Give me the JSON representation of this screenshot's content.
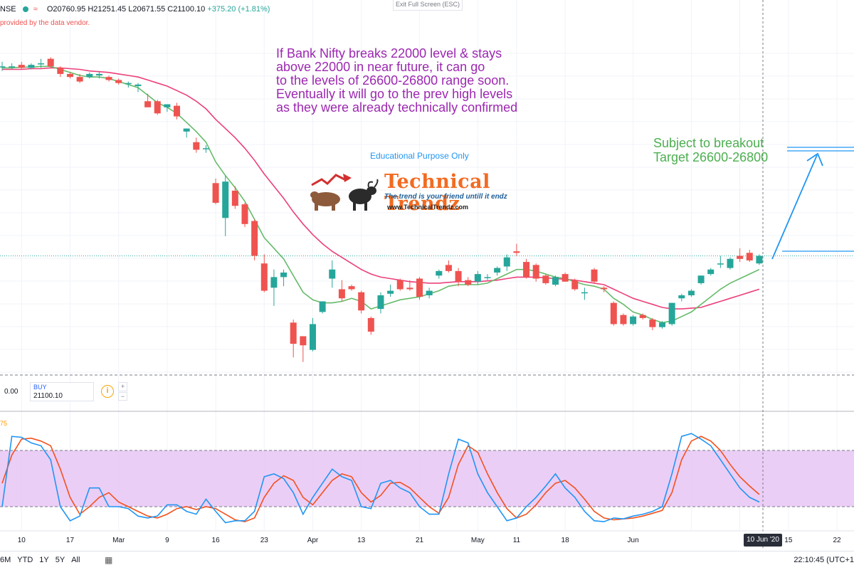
{
  "header": {
    "symbol": "NSE",
    "ohlc": "O20760.95  H21251.45  L20671.55  C21100.10",
    "change": "+375.20 (+1.81%)",
    "vendor_note": "provided by the data vendor.",
    "exit_fullscreen": "Exit Full Screen (ESC)"
  },
  "annotations": {
    "main_text": "If Bank Nifty breaks 22000 level & stays\nabove 22000 in near future, it can go\nto the levels of 26600-26800 range soon.\nEventually it will go to the prev high levels\nas they were already technically confirmed",
    "target_text": "Subject to breakout\nTarget 26600-26800",
    "educational": "Educational Purpose Only",
    "logo_title": "Technical Trendz",
    "logo_tagline": "The trend is your friend untill it endz",
    "logo_url": "www.TechnicalTrendz.com"
  },
  "order_panel": {
    "sell_value": "0.00",
    "buy_label": "BUY",
    "buy_value": "21100.10"
  },
  "oscillator": {
    "label": "75"
  },
  "crosshair_date": "10 Jun '20",
  "bottom_bar": {
    "ranges": [
      "6M",
      "YTD",
      "1Y",
      "5Y",
      "All"
    ],
    "time": "22:10:45 (UTC+1"
  },
  "colors": {
    "up": "#26a69a",
    "down": "#ef5350",
    "fast_ma": "#66bb6a",
    "slow_ma": "#ec407a",
    "stoch_k": "#2196f3",
    "stoch_d": "#f4511e",
    "band": "#e7c6f5",
    "annotation": "#9c27b0",
    "target": "#4caf50",
    "arrow": "#2196f3"
  },
  "chart_data": {
    "type": "candlestick",
    "x_ticks": [
      "10",
      "17",
      "Mar",
      "9",
      "16",
      "23",
      "Apr",
      "13",
      "21",
      "May",
      "11",
      "18",
      "Jun",
      "15",
      "22"
    ],
    "candles": [
      {
        "o": 30.0,
        "h": 30.3,
        "l": 29.7,
        "c": 30.0
      },
      {
        "o": 30.0,
        "h": 30.2,
        "l": 29.8,
        "c": 30.0
      },
      {
        "o": 30.1,
        "h": 30.3,
        "l": 29.8,
        "c": 29.9
      },
      {
        "o": 29.9,
        "h": 30.2,
        "l": 29.8,
        "c": 30.1
      },
      {
        "o": 30.2,
        "h": 30.5,
        "l": 29.9,
        "c": 30.2
      },
      {
        "o": 30.5,
        "h": 30.6,
        "l": 29.9,
        "c": 30.0
      },
      {
        "o": 29.9,
        "h": 30.0,
        "l": 29.3,
        "c": 29.5
      },
      {
        "o": 29.5,
        "h": 29.6,
        "l": 29.2,
        "c": 29.3
      },
      {
        "o": 29.3,
        "h": 29.5,
        "l": 28.9,
        "c": 29.0
      },
      {
        "o": 29.3,
        "h": 29.6,
        "l": 29.2,
        "c": 29.5
      },
      {
        "o": 29.4,
        "h": 29.7,
        "l": 29.2,
        "c": 29.5
      },
      {
        "o": 29.3,
        "h": 29.4,
        "l": 29.0,
        "c": 29.1
      },
      {
        "o": 29.1,
        "h": 29.2,
        "l": 28.8,
        "c": 28.9
      },
      {
        "o": 28.9,
        "h": 29.0,
        "l": 28.6,
        "c": 28.9
      },
      {
        "o": 28.7,
        "h": 28.9,
        "l": 28.3,
        "c": 28.8
      },
      {
        "o": 27.7,
        "h": 28.2,
        "l": 27.5,
        "c": 27.3
      },
      {
        "o": 27.7,
        "h": 27.8,
        "l": 26.8,
        "c": 26.9
      },
      {
        "o": 27.3,
        "h": 27.5,
        "l": 27.0,
        "c": 27.5
      },
      {
        "o": 27.4,
        "h": 27.6,
        "l": 26.5,
        "c": 26.7
      },
      {
        "o": 25.7,
        "h": 25.9,
        "l": 25.3,
        "c": 25.9
      },
      {
        "o": 25.0,
        "h": 25.3,
        "l": 24.3,
        "c": 24.5
      },
      {
        "o": 24.6,
        "h": 24.8,
        "l": 24.3,
        "c": 24.6
      },
      {
        "o": 22.3,
        "h": 22.6,
        "l": 20.9,
        "c": 21.0
      },
      {
        "o": 20.0,
        "h": 22.8,
        "l": 18.8,
        "c": 22.4
      },
      {
        "o": 21.8,
        "h": 22.1,
        "l": 20.6,
        "c": 20.8
      },
      {
        "o": 20.9,
        "h": 21.0,
        "l": 19.4,
        "c": 19.6
      },
      {
        "o": 19.8,
        "h": 19.9,
        "l": 17.2,
        "c": 17.5
      },
      {
        "o": 17.0,
        "h": 17.6,
        "l": 15.1,
        "c": 15.2
      },
      {
        "o": 15.4,
        "h": 16.6,
        "l": 14.2,
        "c": 16.1
      },
      {
        "o": 16.1,
        "h": 16.6,
        "l": 15.5,
        "c": 16.4
      },
      {
        "o": 13.1,
        "h": 13.3,
        "l": 10.8,
        "c": 11.7
      },
      {
        "o": 12.2,
        "h": 12.2,
        "l": 10.5,
        "c": 11.6
      },
      {
        "o": 11.3,
        "h": 13.4,
        "l": 11.2,
        "c": 13.0
      },
      {
        "o": 13.8,
        "h": 14.5,
        "l": 13.7,
        "c": 14.5
      },
      {
        "o": 16.0,
        "h": 17.2,
        "l": 15.4,
        "c": 16.6
      },
      {
        "o": 15.3,
        "h": 15.9,
        "l": 14.5,
        "c": 14.7
      },
      {
        "o": 15.5,
        "h": 15.6,
        "l": 15.2,
        "c": 15.3
      },
      {
        "o": 15.1,
        "h": 15.2,
        "l": 13.7,
        "c": 13.9
      },
      {
        "o": 13.4,
        "h": 13.5,
        "l": 12.3,
        "c": 12.5
      },
      {
        "o": 14.0,
        "h": 15.1,
        "l": 13.7,
        "c": 14.9
      },
      {
        "o": 15.0,
        "h": 15.6,
        "l": 14.8,
        "c": 15.2
      },
      {
        "o": 15.9,
        "h": 16.0,
        "l": 15.2,
        "c": 15.3
      },
      {
        "o": 15.4,
        "h": 15.9,
        "l": 15.2,
        "c": 15.3
      },
      {
        "o": 16.0,
        "h": 16.1,
        "l": 14.6,
        "c": 14.8
      },
      {
        "o": 14.9,
        "h": 15.4,
        "l": 14.7,
        "c": 15.2
      },
      {
        "o": 16.2,
        "h": 16.6,
        "l": 16.0,
        "c": 16.5
      },
      {
        "o": 16.9,
        "h": 17.2,
        "l": 16.4,
        "c": 16.5
      },
      {
        "o": 16.5,
        "h": 16.7,
        "l": 15.5,
        "c": 15.8
      },
      {
        "o": 15.9,
        "h": 16.1,
        "l": 15.5,
        "c": 15.6
      },
      {
        "o": 15.8,
        "h": 16.5,
        "l": 15.6,
        "c": 16.3
      },
      {
        "o": 16.1,
        "h": 16.3,
        "l": 15.9,
        "c": 16.1
      },
      {
        "o": 16.4,
        "h": 16.8,
        "l": 16.2,
        "c": 16.7
      },
      {
        "o": 16.8,
        "h": 17.6,
        "l": 16.5,
        "c": 17.4
      },
      {
        "o": 17.8,
        "h": 18.3,
        "l": 17.5,
        "c": 17.7
      },
      {
        "o": 17.1,
        "h": 17.3,
        "l": 16.0,
        "c": 16.1
      },
      {
        "o": 16.9,
        "h": 17.0,
        "l": 15.8,
        "c": 16.0
      },
      {
        "o": 16.2,
        "h": 16.3,
        "l": 15.6,
        "c": 15.7
      },
      {
        "o": 15.6,
        "h": 16.2,
        "l": 15.5,
        "c": 16.1
      },
      {
        "o": 16.3,
        "h": 16.4,
        "l": 15.8,
        "c": 15.8
      },
      {
        "o": 15.9,
        "h": 16.0,
        "l": 15.2,
        "c": 15.3
      },
      {
        "o": 15.1,
        "h": 15.4,
        "l": 14.6,
        "c": 15.1
      },
      {
        "o": 16.6,
        "h": 16.7,
        "l": 15.7,
        "c": 15.8
      },
      {
        "o": 15.4,
        "h": 15.5,
        "l": 15.1,
        "c": 15.3
      },
      {
        "o": 14.4,
        "h": 14.5,
        "l": 12.9,
        "c": 13.0
      },
      {
        "o": 13.6,
        "h": 13.7,
        "l": 12.9,
        "c": 13.0
      },
      {
        "o": 13.0,
        "h": 13.6,
        "l": 12.9,
        "c": 13.5
      },
      {
        "o": 13.6,
        "h": 13.7,
        "l": 13.3,
        "c": 13.4
      },
      {
        "o": 13.3,
        "h": 13.4,
        "l": 12.6,
        "c": 12.8
      },
      {
        "o": 12.8,
        "h": 13.2,
        "l": 12.7,
        "c": 13.1
      },
      {
        "o": 13.0,
        "h": 14.4,
        "l": 12.9,
        "c": 14.4
      },
      {
        "o": 14.7,
        "h": 15.0,
        "l": 14.5,
        "c": 14.9
      },
      {
        "o": 14.9,
        "h": 15.3,
        "l": 14.8,
        "c": 15.2
      },
      {
        "o": 15.7,
        "h": 16.2,
        "l": 15.6,
        "c": 16.2
      },
      {
        "o": 16.3,
        "h": 16.7,
        "l": 16.2,
        "c": 16.6
      },
      {
        "o": 17.0,
        "h": 17.5,
        "l": 16.7,
        "c": 17.0
      },
      {
        "o": 16.7,
        "h": 17.4,
        "l": 16.6,
        "c": 17.3
      },
      {
        "o": 17.5,
        "h": 18.0,
        "l": 17.1,
        "c": 17.3
      },
      {
        "o": 17.7,
        "h": 17.9,
        "l": 17.1,
        "c": 17.2
      },
      {
        "o": 17.0,
        "h": 17.6,
        "l": 16.9,
        "c": 17.5
      }
    ],
    "fast_ma": [
      29.9,
      29.9,
      29.95,
      29.95,
      30.0,
      30.0,
      29.8,
      29.6,
      29.4,
      29.3,
      29.3,
      29.2,
      29.0,
      28.8,
      28.6,
      28.1,
      27.6,
      27.3,
      26.9,
      26.3,
      25.7,
      25.0,
      23.7,
      22.8,
      22.0,
      21.1,
      19.9,
      18.7,
      18.0,
      17.3,
      16.2,
      15.1,
      14.6,
      14.4,
      14.4,
      14.5,
      14.7,
      14.5,
      14.0,
      14.2,
      14.4,
      14.6,
      14.7,
      14.8,
      15.0,
      15.2,
      15.5,
      15.6,
      15.6,
      15.6,
      15.7,
      16.0,
      16.3,
      16.6,
      16.6,
      16.5,
      16.3,
      16.1,
      16.0,
      15.8,
      15.6,
      15.5,
      15.3,
      14.7,
      14.3,
      13.8,
      13.6,
      13.3,
      13.1,
      13.2,
      13.5,
      13.8,
      14.3,
      14.8,
      15.3,
      15.7,
      16.0,
      16.3,
      16.6
    ],
    "slow_ma": [
      29.8,
      29.8,
      29.8,
      29.85,
      29.85,
      29.9,
      29.9,
      29.85,
      29.8,
      29.7,
      29.65,
      29.6,
      29.5,
      29.4,
      29.3,
      29.1,
      28.9,
      28.7,
      28.4,
      28.1,
      27.7,
      27.2,
      26.5,
      25.9,
      25.3,
      24.6,
      23.8,
      22.9,
      22.1,
      21.3,
      20.4,
      19.6,
      18.9,
      18.3,
      17.8,
      17.4,
      17.0,
      16.6,
      16.3,
      16.1,
      16.0,
      15.9,
      15.8,
      15.75,
      15.7,
      15.7,
      15.75,
      15.8,
      15.8,
      15.8,
      15.85,
      15.9,
      16.0,
      16.1,
      16.1,
      16.1,
      16.05,
      16.0,
      15.95,
      15.9,
      15.8,
      15.7,
      15.6,
      15.3,
      15.0,
      14.7,
      14.5,
      14.3,
      14.1,
      14.0,
      14.0,
      14.05,
      14.1,
      14.3,
      14.5,
      14.7,
      14.9,
      15.1,
      15.3
    ],
    "stoch_k": [
      20,
      95,
      94,
      88,
      85,
      70,
      20,
      5,
      10,
      40,
      40,
      20,
      20,
      18,
      10,
      8,
      10,
      22,
      22,
      15,
      12,
      28,
      15,
      3,
      5,
      5,
      15,
      52,
      55,
      50,
      35,
      12,
      30,
      45,
      60,
      52,
      48,
      20,
      18,
      45,
      48,
      40,
      35,
      20,
      12,
      12,
      55,
      92,
      88,
      55,
      35,
      20,
      5,
      8,
      20,
      30,
      42,
      55,
      40,
      30,
      15,
      5,
      4,
      8,
      7,
      10,
      12,
      15,
      20,
      55,
      95,
      98,
      92,
      85,
      70,
      55,
      40,
      30,
      25
    ],
    "stoch_d": [
      45,
      75,
      92,
      93,
      90,
      85,
      60,
      30,
      12,
      20,
      30,
      35,
      25,
      20,
      15,
      10,
      8,
      12,
      18,
      20,
      17,
      20,
      18,
      12,
      6,
      4,
      8,
      30,
      45,
      53,
      48,
      30,
      22,
      35,
      48,
      55,
      52,
      35,
      25,
      32,
      45,
      46,
      40,
      30,
      20,
      13,
      30,
      65,
      85,
      78,
      55,
      35,
      18,
      8,
      12,
      22,
      35,
      45,
      48,
      40,
      28,
      15,
      8,
      6,
      7,
      8,
      10,
      13,
      16,
      35,
      70,
      90,
      95,
      90,
      80,
      65,
      52,
      42,
      33
    ],
    "ylim": [
      9.5,
      32.5
    ],
    "oscillator_ylim": [
      -5,
      105
    ],
    "oscillator_band": [
      20,
      80
    ]
  }
}
